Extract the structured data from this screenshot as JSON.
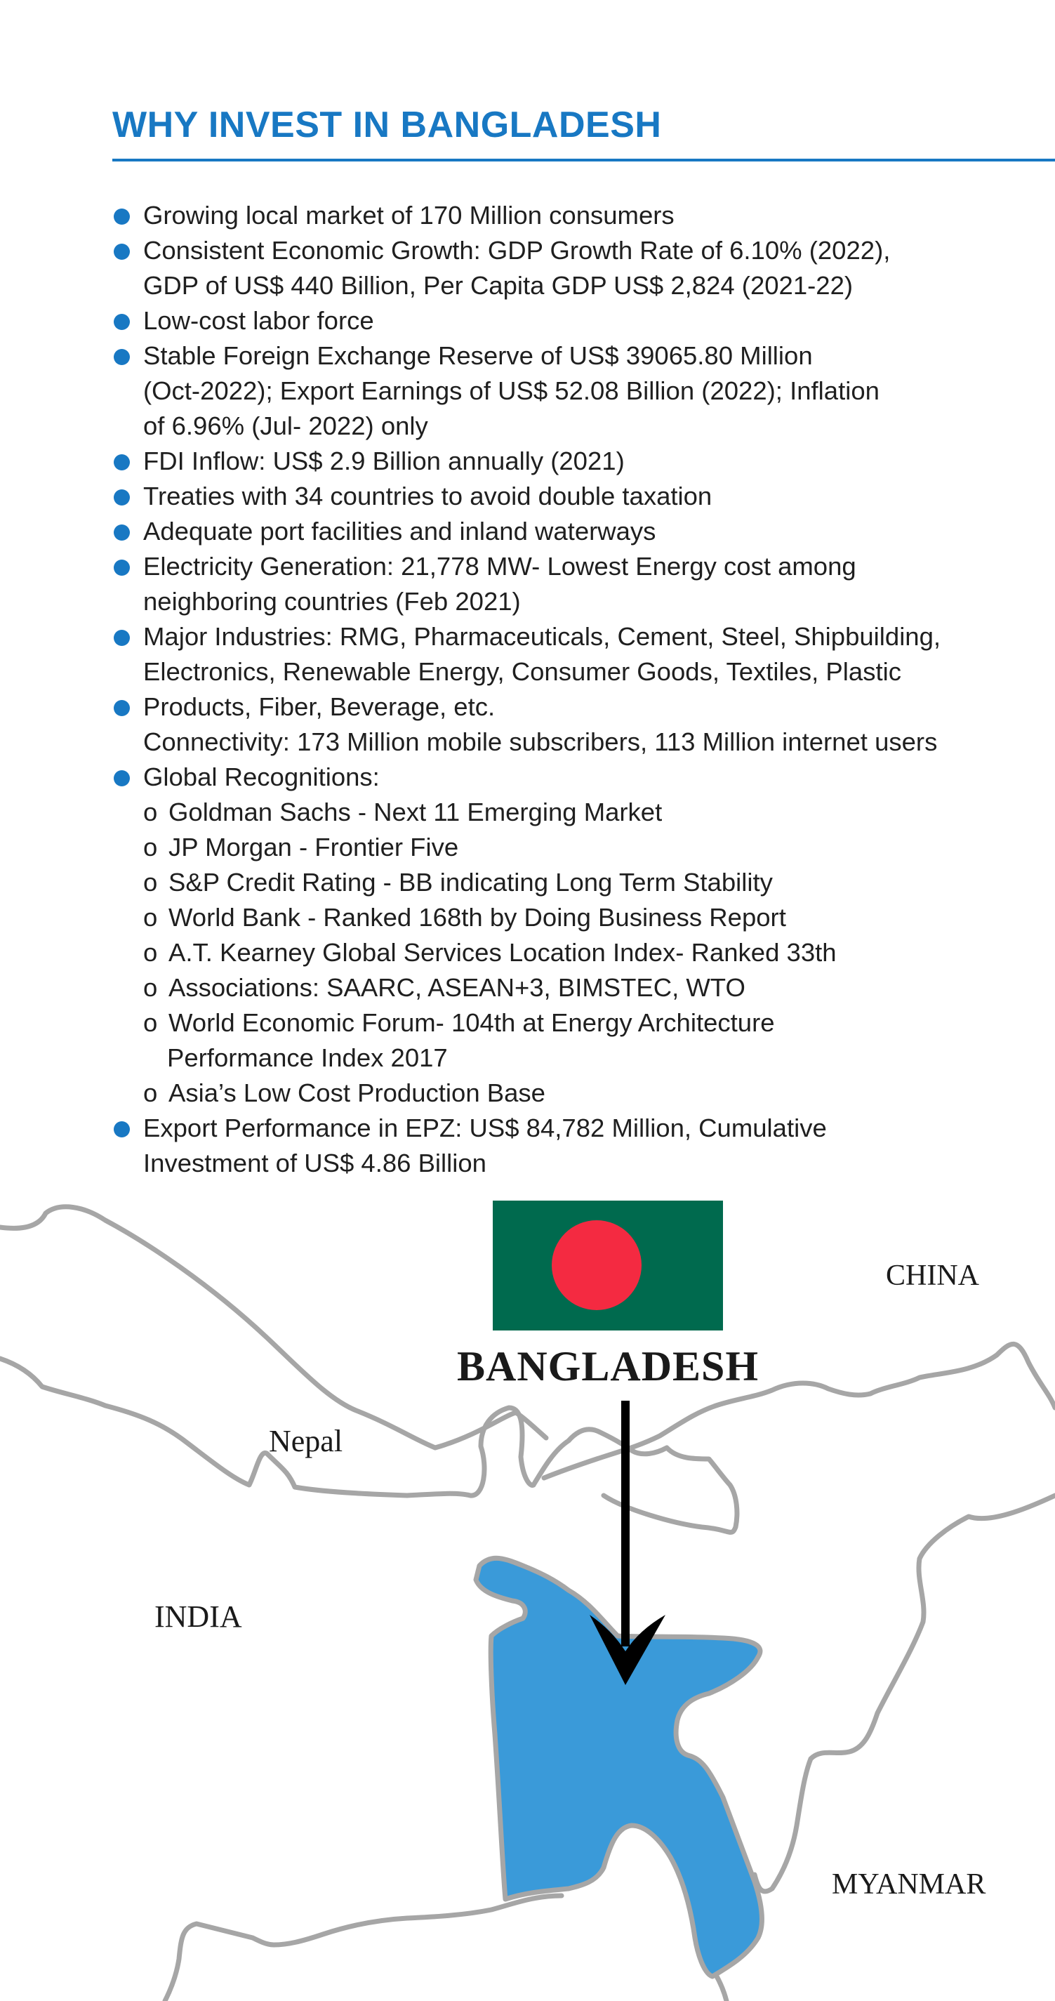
{
  "title": "WHY INVEST IN BANGLADESH",
  "bullets": [
    {
      "lines": [
        "Growing local market of 170 Million consumers"
      ]
    },
    {
      "lines": [
        "Consistent Economic Growth: GDP Growth Rate of 6.10% (2022),",
        "GDP of US$ 440 Billion, Per Capita GDP US$ 2,824 (2021-22)"
      ]
    },
    {
      "lines": [
        "Low-cost labor force"
      ]
    },
    {
      "lines": [
        "Stable Foreign Exchange Reserve of US$ 39065.80 Million",
        "(Oct-2022);  Export Earnings of US$ 52.08 Billion (2022); Inflation",
        "of 6.96% (Jul- 2022) only"
      ]
    },
    {
      "lines": [
        "FDI Inflow: US$ 2.9 Billion annually (2021)"
      ]
    },
    {
      "lines": [
        "Treaties with 34 countries to avoid double taxation"
      ]
    },
    {
      "lines": [
        "Adequate port facilities and inland waterways"
      ]
    },
    {
      "lines": [
        "Electricity Generation: 21,778 MW- Lowest Energy cost among",
        "neighboring countries (Feb 2021)"
      ]
    },
    {
      "lines": [
        "Major Industries: RMG, Pharmaceuticals, Cement, Steel, Shipbuilding,",
        "Electronics, Renewable Energy, Consumer Goods, Textiles, Plastic"
      ]
    },
    {
      "lines": [
        "Products, Fiber, Beverage, etc.",
        "Connectivity: 173 Million mobile subscribers, 113 Million internet users"
      ]
    },
    {
      "lines": [
        "Global Recognitions:"
      ]
    },
    {
      "lines": [
        "Export Performance in EPZ: US$ 84,782 Million, Cumulative",
        "Investment of US$ 4.86 Billion"
      ]
    }
  ],
  "sub_marker": "o",
  "recognitions": [
    {
      "lines": [
        "Goldman Sachs - Next 11 Emerging Market"
      ]
    },
    {
      "lines": [
        "JP Morgan - Frontier Five"
      ]
    },
    {
      "lines": [
        "S&P Credit Rating - BB indicating Long Term Stability"
      ]
    },
    {
      "lines": [
        "World Bank - Ranked 168th by Doing Business Report"
      ]
    },
    {
      "lines": [
        "A.T. Kearney Global Services Location Index- Ranked 33th"
      ]
    },
    {
      "lines": [
        "Associations: SAARC, ASEAN+3, BIMSTEC, WTO"
      ]
    },
    {
      "lines": [
        "World Economic Forum- 104th at Energy Architecture",
        "Performance Index 2017"
      ]
    },
    {
      "lines": [
        "Asia’s Low Cost Production Base"
      ]
    }
  ],
  "map": {
    "labels": {
      "china": "CHINA",
      "bangladesh": "BANGLADESH",
      "nepal": "Nepal",
      "india": "INDIA",
      "myanmar": "MYANMAR"
    },
    "colors": {
      "flag_green": "#006a4e",
      "flag_red": "#f42a41",
      "bangladesh_fill": "#3a9ad9",
      "border": "#a6a6a6",
      "arrow": "#000000"
    },
    "icons": [
      "bangladesh-flag-icon",
      "down-arrow-icon"
    ]
  }
}
